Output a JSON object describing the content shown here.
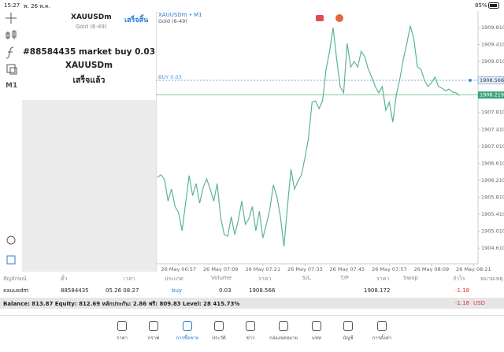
{
  "status_bar": {
    "time": "15:27",
    "date": "พ. 26 พ.ค.",
    "battery": "85%"
  },
  "left_toolbar": {
    "timeframe": "M1"
  },
  "order_panel": {
    "symbol": "XAUUSDm",
    "description": "Gold (6-49)",
    "done_button": "เสร็จสิ้น",
    "message": "#88584435 market buy 0.03",
    "message_symbol": "XAUUSDm",
    "status": "เสร็จแล้ว"
  },
  "chart_data": {
    "type": "line",
    "title": "XAUUSDm • M1",
    "subtitle": "Gold (6-49)",
    "color": "#5cb58e",
    "categories": [
      null,
      null,
      null,
      null,
      null,
      null,
      "26 May 06:57",
      null,
      null,
      null,
      null,
      null,
      null,
      null,
      null,
      null,
      null,
      null,
      "26 May 07:09",
      null,
      null,
      null,
      null,
      null,
      null,
      null,
      null,
      null,
      null,
      null,
      "26 May 07:21",
      null,
      null,
      null,
      null,
      null,
      null,
      null,
      null,
      null,
      null,
      null,
      "26 May 07:33",
      null,
      null,
      null,
      null,
      null,
      null,
      null,
      null,
      null,
      null,
      null,
      "26 May 07:45",
      null,
      null,
      null,
      null,
      null,
      null,
      null,
      null,
      null,
      null,
      null,
      "26 May 07:57",
      null,
      null,
      null,
      null,
      null,
      null,
      null,
      null,
      null,
      null,
      null,
      "26 May 08:09",
      null,
      null,
      null,
      null,
      null,
      null,
      null,
      null,
      null,
      null,
      null,
      "26 May 08:21"
    ],
    "values": [
      1906.28,
      1906.34,
      1906.23,
      1905.72,
      1906.0,
      1905.59,
      1905.45,
      1905.02,
      1905.67,
      1906.32,
      1905.85,
      1906.13,
      1905.67,
      1906.04,
      1906.24,
      1906.0,
      1905.72,
      1906.13,
      1905.32,
      1904.93,
      1904.89,
      1905.35,
      1904.93,
      1905.26,
      1905.72,
      1905.17,
      1905.3,
      1905.59,
      1905.02,
      1905.48,
      1904.85,
      1905.17,
      1905.54,
      1906.1,
      1905.82,
      1905.35,
      1904.65,
      1905.59,
      1906.47,
      1906.0,
      1906.19,
      1906.34,
      1906.75,
      1907.21,
      1908.05,
      1908.08,
      1907.9,
      1908.08,
      1908.83,
      1909.25,
      1909.81,
      1909.07,
      1908.42,
      1908.27,
      1909.44,
      1908.88,
      1909.01,
      1908.88,
      1909.25,
      1909.12,
      1908.83,
      1908.64,
      1908.42,
      1908.27,
      1908.42,
      1907.86,
      1908.05,
      1907.58,
      1908.23,
      1908.6,
      1909.07,
      1909.44,
      1909.85,
      1909.53,
      1908.88,
      1908.83,
      1908.57,
      1908.42,
      1908.51,
      1908.64,
      1908.42,
      1908.38,
      1908.32,
      1908.36,
      1908.29,
      1908.27,
      1908.21,
      null,
      null,
      null,
      null
    ],
    "ylim": [
      1904.24,
      1910.2
    ],
    "yticks": [
      {
        "value": 1909.81,
        "label": "1909.810"
      },
      {
        "value": 1909.41,
        "label": "1909.410"
      },
      {
        "value": 1909.01,
        "label": "1909.010"
      },
      {
        "value": 1908.61,
        "label": "1908.610"
      },
      {
        "value": 1908.21,
        "label": "1908.210"
      },
      {
        "value": 1907.81,
        "label": "1907.810"
      },
      {
        "value": 1907.41,
        "label": "1907.410"
      },
      {
        "value": 1907.01,
        "label": "1907.010"
      },
      {
        "value": 1906.61,
        "label": "1906.610"
      },
      {
        "value": 1906.21,
        "label": "1906.210"
      },
      {
        "value": 1905.81,
        "label": "1905.810"
      },
      {
        "value": 1905.41,
        "label": "1905.410"
      },
      {
        "value": 1905.01,
        "label": "1905.010"
      },
      {
        "value": 1904.61,
        "label": "1904.610"
      }
    ],
    "order_line": {
      "label": "BUY 0.03",
      "value": 1908.566,
      "color": "#4a90d9"
    },
    "price_line": {
      "value": 1908.219,
      "color": "#3aa57a"
    }
  },
  "positions": {
    "columns": [
      "สัญลักษณ์",
      "ตั๋ว",
      "เวลา",
      "ประเภท",
      "Volume",
      "ราคา",
      "S/L",
      "T/P",
      "ราคา",
      "Swap",
      "กำไร",
      "หมายเหตุ"
    ],
    "row": {
      "symbol": "xauusdm",
      "ticket": "88584435",
      "time": "05.26 08:27",
      "type": "buy",
      "volume": "0.03",
      "price": "1908.566",
      "current_price": "1908.172",
      "profit": "-1.18"
    },
    "balance": "Balance: 813.87 Equity: 812.69 หลักประกัน: 2.86 ฟรี: 809.83 Level: 28 415.73%",
    "total_profit": "-1.18",
    "currency": "USD"
  },
  "nav": [
    "ราคา",
    "กราฟ",
    "การซื้อขาย",
    "ประวัติ",
    "ข่าว",
    "กล่องจดหมาย",
    "แชท",
    "บัญชี",
    "การตั้งค่า"
  ]
}
